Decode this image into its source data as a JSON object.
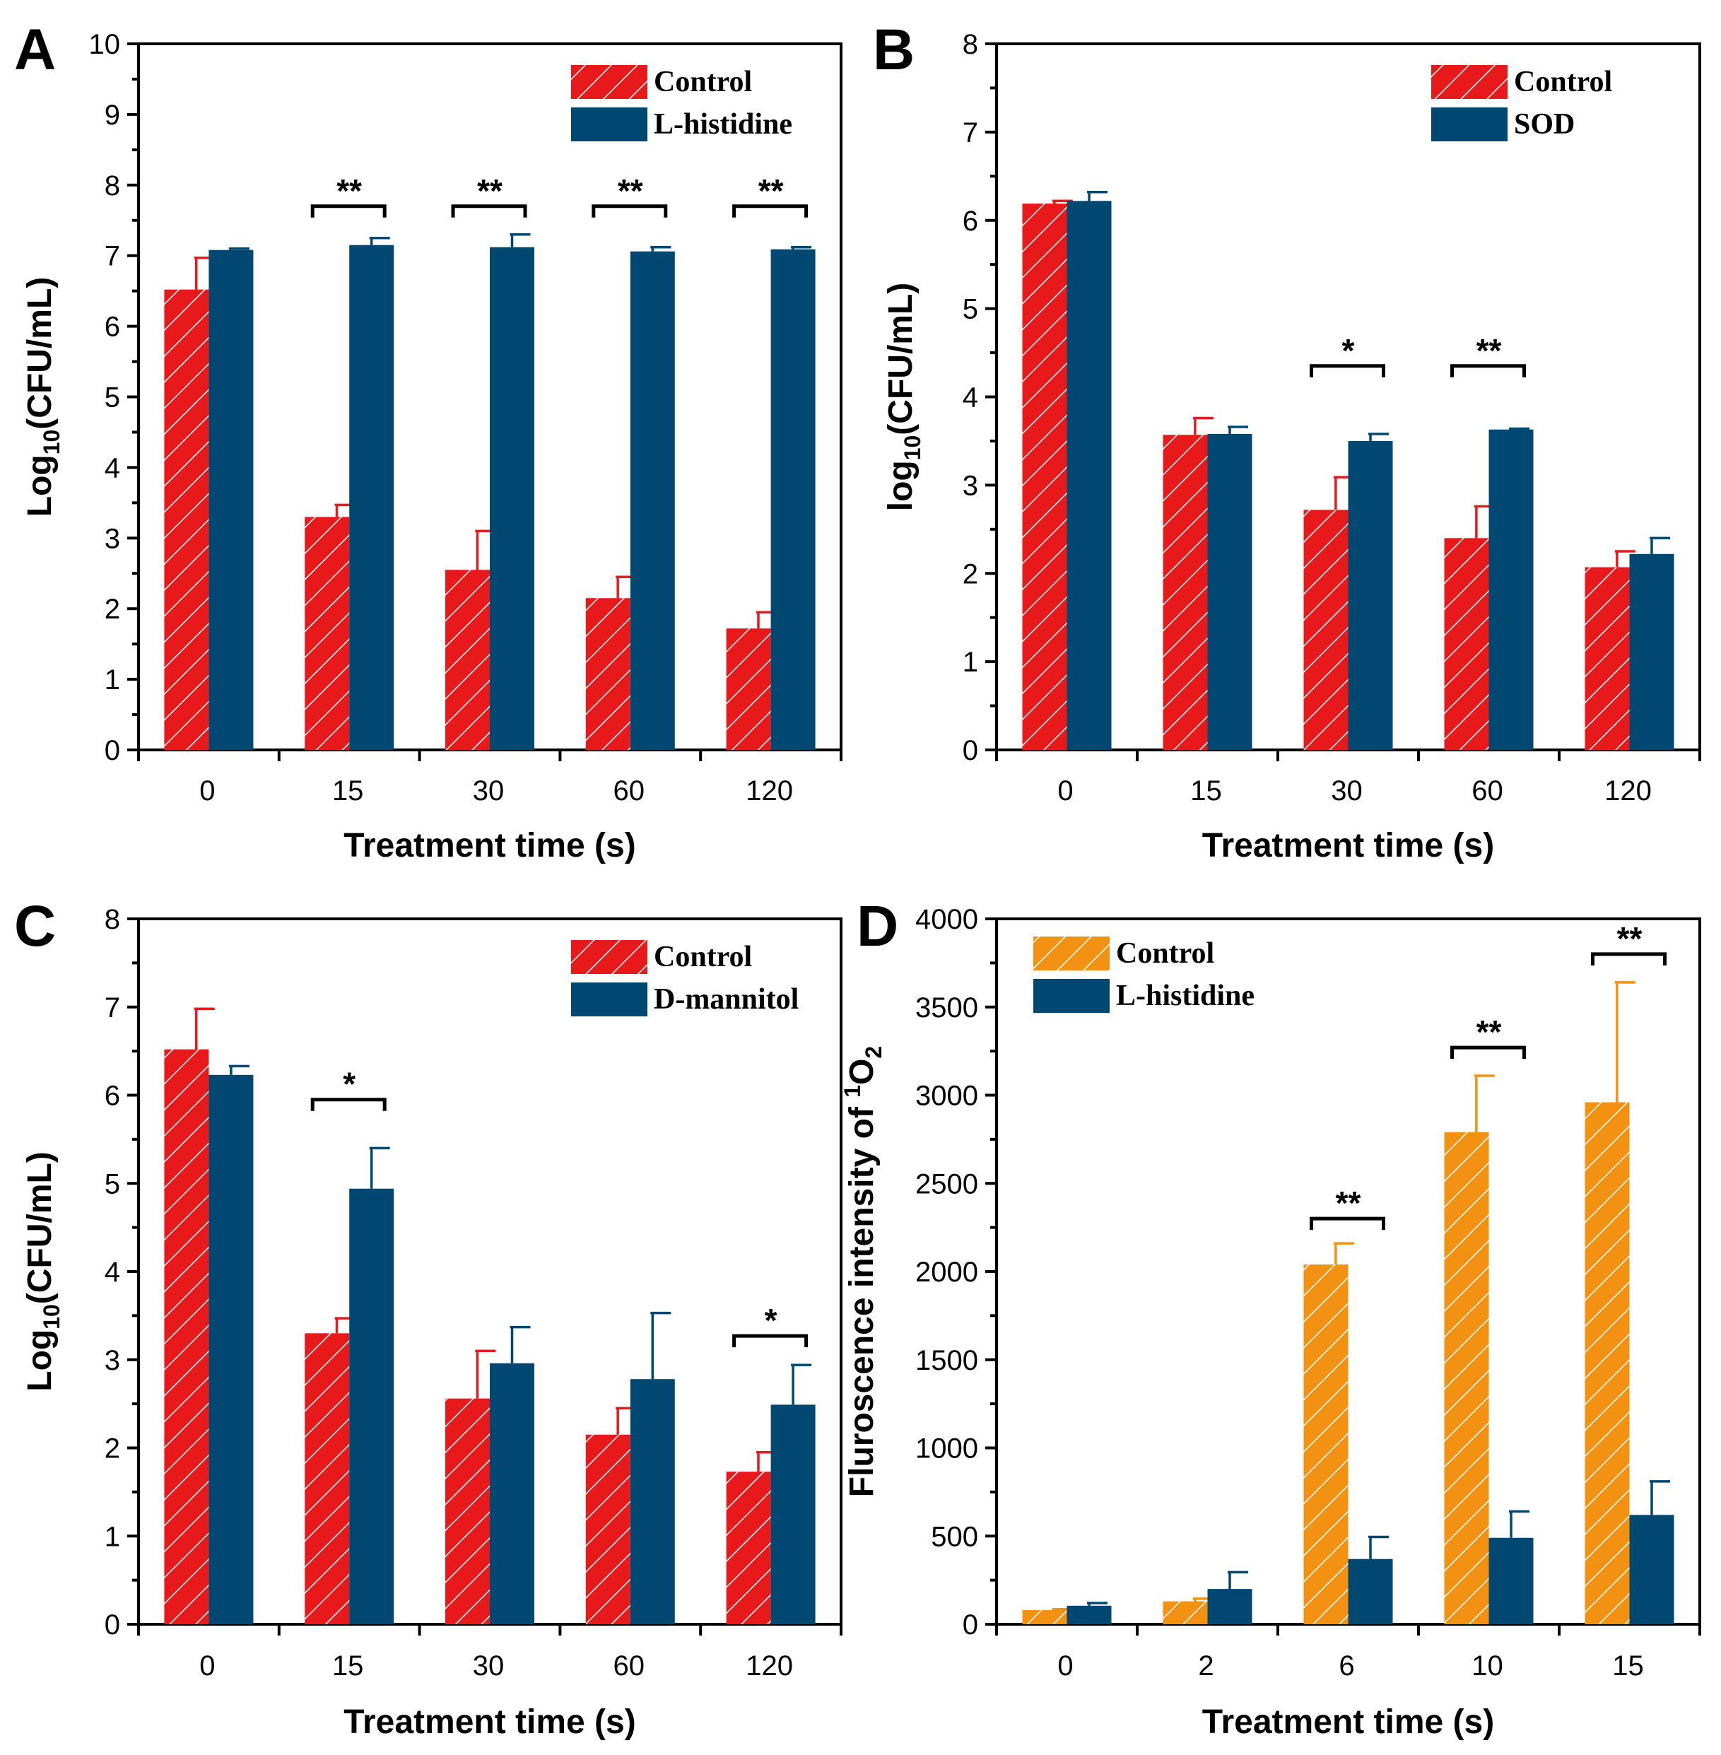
{
  "colors": {
    "control_red": "#e8191b",
    "control_orange": "#f39112",
    "treatment_blue": "#004872",
    "axis": "#000000"
  },
  "chart_data": [
    {
      "panel": "A",
      "type": "bar",
      "title": "",
      "xlabel": "Treatment time (s)",
      "ylabel_main": "Log",
      "ylabel_sub": "10",
      "ylabel_tail": "(CFU/mL)",
      "categories": [
        "0",
        "15",
        "30",
        "60",
        "120"
      ],
      "ylim": [
        0,
        10
      ],
      "yticks": [
        "0",
        "1",
        "2",
        "3",
        "4",
        "5",
        "6",
        "7",
        "8",
        "9",
        "10"
      ],
      "series": [
        {
          "name": "Control",
          "color": "control_red",
          "hatched": true,
          "values": [
            6.52,
            3.3,
            2.55,
            2.15,
            1.72
          ],
          "errors": [
            0.45,
            0.17,
            0.55,
            0.3,
            0.23
          ]
        },
        {
          "name": "L-histidine",
          "color": "treatment_blue",
          "hatched": false,
          "values": [
            7.08,
            7.15,
            7.12,
            7.06,
            7.09
          ],
          "errors": [
            0.02,
            0.1,
            0.18,
            0.06,
            0.03
          ]
        }
      ],
      "significance": [
        {
          "category": "15",
          "label": "**",
          "y": 7.7
        },
        {
          "category": "30",
          "label": "**",
          "y": 7.7
        },
        {
          "category": "60",
          "label": "**",
          "y": 7.7
        },
        {
          "category": "120",
          "label": "**",
          "y": 7.7
        }
      ],
      "legend_position": "top-right"
    },
    {
      "panel": "B",
      "type": "bar",
      "title": "",
      "xlabel": "Treatment time (s)",
      "ylabel_main": "log",
      "ylabel_sub": "10",
      "ylabel_tail": "(CFU/mL)",
      "categories": [
        "0",
        "15",
        "30",
        "60",
        "120"
      ],
      "ylim": [
        0,
        8
      ],
      "yticks": [
        "0",
        "1",
        "2",
        "3",
        "4",
        "5",
        "6",
        "7",
        "8"
      ],
      "series": [
        {
          "name": "Control",
          "color": "control_red",
          "hatched": true,
          "values": [
            6.19,
            3.57,
            2.72,
            2.4,
            2.07
          ],
          "errors": [
            0.03,
            0.19,
            0.37,
            0.36,
            0.18
          ]
        },
        {
          "name": "SOD",
          "color": "treatment_blue",
          "hatched": false,
          "values": [
            6.22,
            3.58,
            3.5,
            3.63,
            2.22
          ],
          "errors": [
            0.1,
            0.08,
            0.08,
            0.01,
            0.18
          ]
        }
      ],
      "significance": [
        {
          "category": "30",
          "label": "*",
          "y": 4.35
        },
        {
          "category": "60",
          "label": "**",
          "y": 4.35
        }
      ],
      "legend_position": "top-right"
    },
    {
      "panel": "C",
      "type": "bar",
      "title": "",
      "xlabel": "Treatment time (s)",
      "ylabel_main": "Log",
      "ylabel_sub": "10",
      "ylabel_tail": "(CFU/mL)",
      "categories": [
        "0",
        "15",
        "30",
        "60",
        "120"
      ],
      "ylim": [
        0,
        8
      ],
      "yticks": [
        "0",
        "1",
        "2",
        "3",
        "4",
        "5",
        "6",
        "7",
        "8"
      ],
      "series": [
        {
          "name": "Control",
          "color": "control_red",
          "hatched": true,
          "values": [
            6.52,
            3.3,
            2.56,
            2.15,
            1.73
          ],
          "errors": [
            0.46,
            0.17,
            0.54,
            0.3,
            0.22
          ]
        },
        {
          "name": "D-mannitol",
          "color": "treatment_blue",
          "hatched": false,
          "values": [
            6.23,
            4.94,
            2.96,
            2.78,
            2.49
          ],
          "errors": [
            0.1,
            0.46,
            0.41,
            0.75,
            0.45
          ]
        }
      ],
      "significance": [
        {
          "category": "15",
          "label": "*",
          "y": 5.95
        },
        {
          "category": "120",
          "label": "*",
          "y": 3.27
        }
      ],
      "legend_position": "top-right"
    },
    {
      "panel": "D",
      "type": "bar",
      "title": "",
      "xlabel": "Treatment time (s)",
      "ylabel_main": "Fluroscence intensity of ",
      "ylabel_sup": "1",
      "ylabel_mid": "O",
      "ylabel_sub": "2",
      "categories": [
        "0",
        "2",
        "6",
        "10",
        "15"
      ],
      "ylim": [
        0,
        4000
      ],
      "yticks": [
        "0",
        "500",
        "1000",
        "1500",
        "2000",
        "2500",
        "3000",
        "3500",
        "4000"
      ],
      "series": [
        {
          "name": "Control",
          "color": "control_orange",
          "hatched": true,
          "values": [
            80,
            130,
            2040,
            2790,
            2960
          ],
          "errors": [
            5,
            15,
            120,
            320,
            680
          ]
        },
        {
          "name": "L-histidine",
          "color": "treatment_blue",
          "hatched": false,
          "values": [
            105,
            200,
            370,
            490,
            620
          ],
          "errors": [
            15,
            95,
            125,
            150,
            190
          ]
        }
      ],
      "significance": [
        {
          "category": "6",
          "label": "**",
          "y": 2300
        },
        {
          "category": "10",
          "label": "**",
          "y": 3270
        },
        {
          "category": "15",
          "label": "**",
          "y": 3800
        }
      ],
      "legend_position": "top-left"
    }
  ]
}
